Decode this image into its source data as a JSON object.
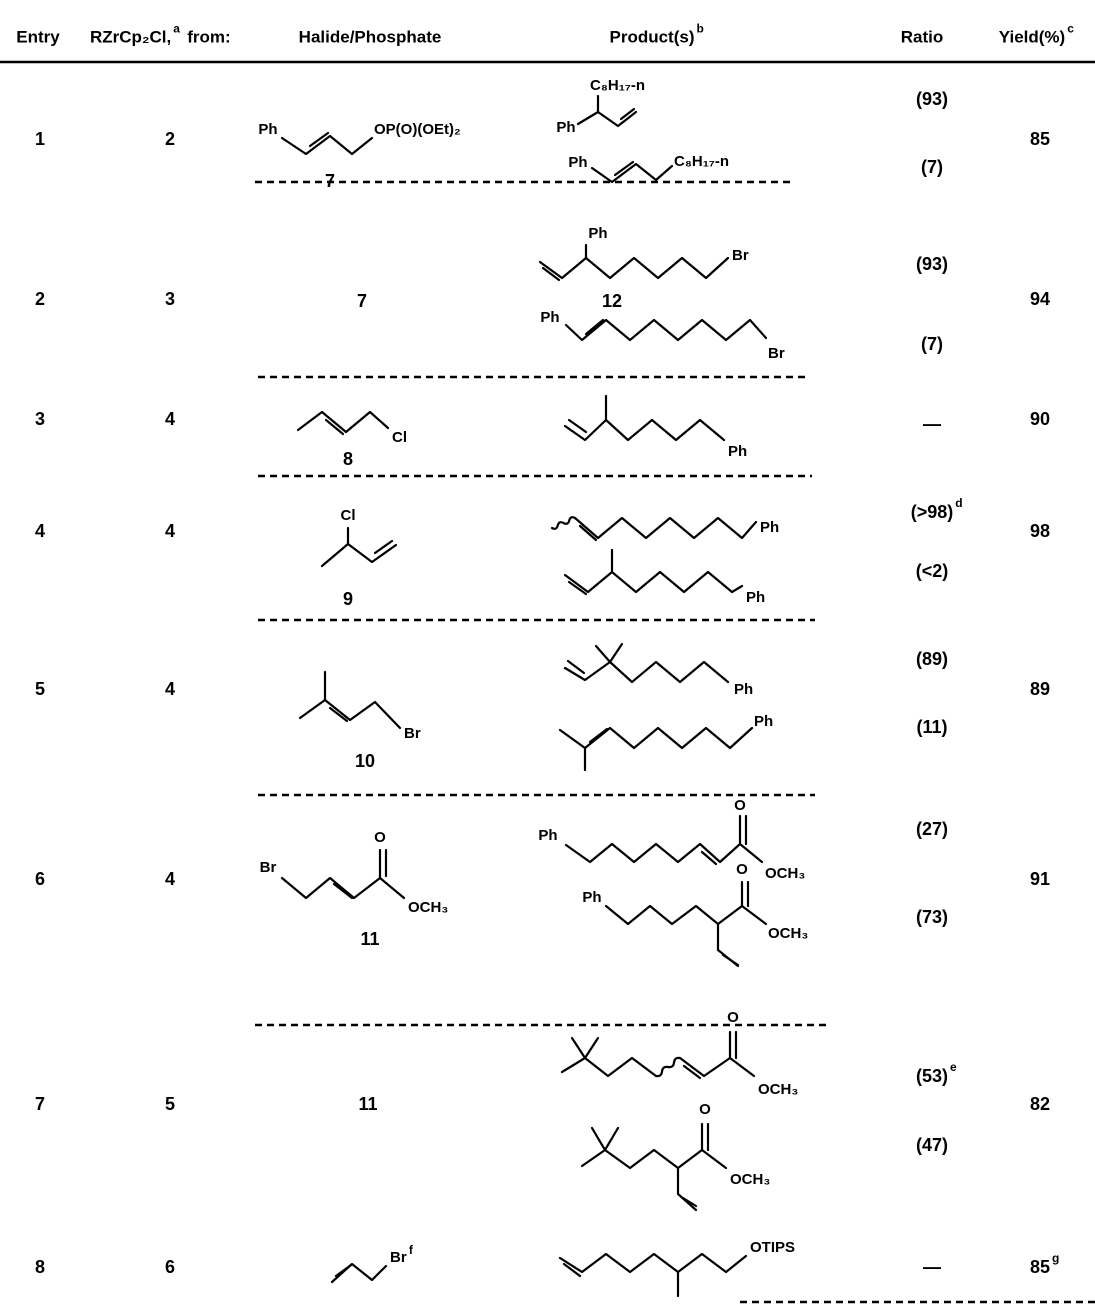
{
  "table": {
    "headers": [
      {
        "text": "Entry"
      },
      {
        "text": "RZrCp₂Cl,",
        "note": "a",
        "after": "from:"
      },
      {
        "text": "Halide/Phosphate"
      },
      {
        "text": "Product(s)",
        "note": "b"
      },
      {
        "text": "Ratio"
      },
      {
        "text": "Yield(%)",
        "note": "c"
      }
    ],
    "rows": [
      {
        "entry": 1,
        "reagent": 2,
        "substrate": {
          "labels": [
            "Ph",
            "OP(O)(OEt)₂"
          ],
          "compound": 7
        },
        "products": [
          {
            "labels": [
              "C₈H₁₇-n",
              "Ph"
            ],
            "ratio": "(93)"
          },
          {
            "labels": [
              "Ph",
              "C₈H₁₇-n"
            ],
            "ratio": "(7)"
          }
        ],
        "yield": 85
      },
      {
        "entry": 2,
        "reagent": 3,
        "substrate": {
          "compound": 7
        },
        "products": [
          {
            "labels": [
              "Ph",
              "Br"
            ],
            "compound": 12,
            "ratio": "(93)"
          },
          {
            "labels": [
              "Ph",
              "Br"
            ],
            "ratio": "(7)"
          }
        ],
        "yield": 94
      },
      {
        "entry": 3,
        "reagent": 4,
        "substrate": {
          "labels": [
            "Cl"
          ],
          "compound": 8
        },
        "products": [
          {
            "labels": [
              "Ph"
            ],
            "ratio": "—"
          }
        ],
        "yield": 90
      },
      {
        "entry": 4,
        "reagent": 4,
        "substrate": {
          "labels": [
            "Cl"
          ],
          "compound": 9
        },
        "products": [
          {
            "labels": [
              "Ph"
            ],
            "ratio": "(>98)",
            "ratio_note": "d"
          },
          {
            "labels": [
              "Ph"
            ],
            "ratio": "(<2)"
          }
        ],
        "yield": 98
      },
      {
        "entry": 5,
        "reagent": 4,
        "substrate": {
          "labels": [
            "Br"
          ],
          "compound": 10
        },
        "products": [
          {
            "labels": [
              "Ph"
            ],
            "ratio": "(89)"
          },
          {
            "labels": [
              "Ph"
            ],
            "ratio": "(11)"
          }
        ],
        "yield": 89
      },
      {
        "entry": 6,
        "reagent": 4,
        "substrate": {
          "labels": [
            "Br",
            "O",
            "OCH₃"
          ],
          "compound": 11
        },
        "products": [
          {
            "labels": [
              "Ph",
              "O",
              "OCH₃"
            ],
            "ratio": "(27)"
          },
          {
            "labels": [
              "Ph",
              "O",
              "OCH₃"
            ],
            "ratio": "(73)"
          }
        ],
        "yield": 91
      },
      {
        "entry": 7,
        "reagent": 5,
        "substrate": {
          "compound": 11
        },
        "products": [
          {
            "labels": [
              "O",
              "OCH₃"
            ],
            "ratio": "(53)",
            "ratio_note": "e"
          },
          {
            "labels": [
              "O",
              "OCH₃"
            ],
            "ratio": "(47)"
          }
        ],
        "yield": 82
      },
      {
        "entry": 8,
        "reagent": 6,
        "substrate": {
          "labels": [
            "Br"
          ],
          "note": "f"
        },
        "products": [
          {
            "labels": [
              "OTIPS"
            ],
            "ratio": "—"
          }
        ],
        "yield": 85,
        "yield_note": "g"
      }
    ]
  }
}
